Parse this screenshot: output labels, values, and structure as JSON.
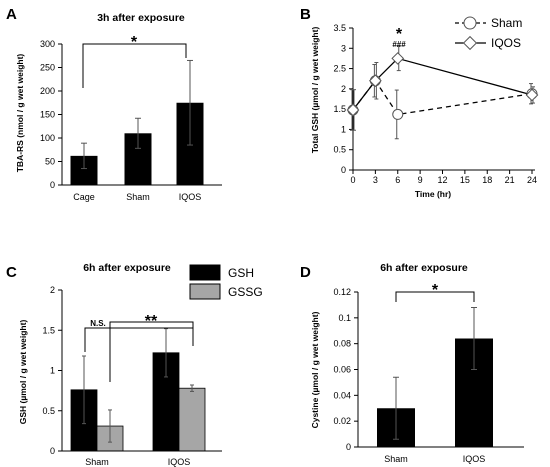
{
  "panels": {
    "A": {
      "letter": "A",
      "title": "3h after exposure",
      "star": "*"
    },
    "B": {
      "letter": "B",
      "star": "*",
      "hashes": "###"
    },
    "C": {
      "letter": "C",
      "title": "6h after exposure",
      "ns": "N.S.",
      "stars": "**"
    },
    "D": {
      "letter": "D",
      "title": "6h after exposure",
      "star": "*"
    }
  },
  "colors": {
    "black": "#000000",
    "gray": "#a6a6a6",
    "white": "#ffffff"
  },
  "chart_data": [
    {
      "id": "A",
      "type": "bar",
      "title": "3h after exposure",
      "ylabel": "TBA-RS (nmol / g wet weight)",
      "categories": [
        "Cage",
        "Sham",
        "IQOS"
      ],
      "values": [
        62,
        110,
        175
      ],
      "errors": [
        27,
        32,
        90
      ],
      "ylim": [
        0,
        300
      ],
      "yticks": [
        "0",
        "50",
        "100",
        "150",
        "200",
        "250",
        "300"
      ]
    },
    {
      "id": "B",
      "type": "line",
      "ylabel": "Total GSH (µmol / g wet weight)",
      "xlabel": "Time (hr)",
      "xlim": [
        0,
        24
      ],
      "ylim": [
        0,
        3.5
      ],
      "xticks": [
        "0",
        "3",
        "6",
        "9",
        "12",
        "15",
        "18",
        "21",
        "24"
      ],
      "yticks": [
        "0",
        "0.5",
        "1",
        "1.5",
        "2",
        "2.5",
        "3",
        "3.5"
      ],
      "legend_position": "top-right",
      "series": [
        {
          "name": "Sham",
          "x": [
            0,
            3,
            6,
            24
          ],
          "y": [
            1.48,
            2.2,
            1.37,
            1.88
          ],
          "err": [
            0.5,
            0.4,
            0.6,
            0.25
          ]
        },
        {
          "name": "IQOS",
          "x": [
            0,
            3,
            6,
            24
          ],
          "y": [
            1.48,
            2.2,
            2.75,
            1.85
          ],
          "err": [
            0.5,
            0.45,
            0.3,
            0.2
          ]
        }
      ]
    },
    {
      "id": "C",
      "type": "bar",
      "title": "6h after exposure",
      "ylabel": "GSH (µmol / g wet weight)",
      "categories": [
        "Sham",
        "IQOS"
      ],
      "ylim": [
        0,
        2
      ],
      "yticks": [
        "0",
        "0.5",
        "1",
        "1.5",
        "2"
      ],
      "legend_position": "top-right",
      "series": [
        {
          "name": "GSH",
          "values": [
            0.76,
            1.22
          ],
          "errors": [
            0.42,
            0.3
          ]
        },
        {
          "name": "GSSG",
          "values": [
            0.31,
            0.78
          ],
          "errors": [
            0.2,
            0.04
          ]
        }
      ]
    },
    {
      "id": "D",
      "type": "bar",
      "title": "6h after exposure",
      "ylabel": "Cystine (µmol / g wet weight)",
      "categories": [
        "Sham",
        "IQOS"
      ],
      "values": [
        0.03,
        0.084
      ],
      "errors": [
        0.024,
        0.024
      ],
      "ylim": [
        0,
        0.12
      ],
      "yticks": [
        "0",
        "0.02",
        "0.04",
        "0.06",
        "0.08",
        "0.1",
        "0.12"
      ]
    }
  ]
}
